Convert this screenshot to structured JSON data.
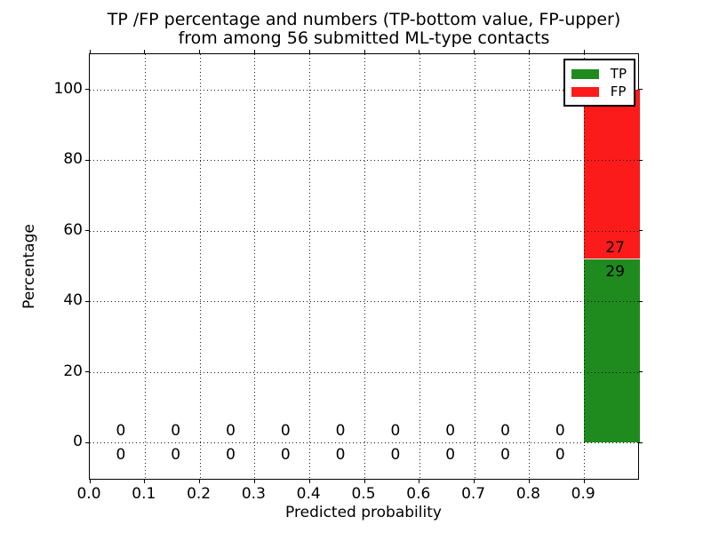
{
  "chart_data": {
    "type": "bar",
    "stacked": true,
    "title_line1": "TP /FP percentage and numbers (TP-bottom value, FP-upper)",
    "title_line2": "from among 56 submitted ML-type contacts",
    "xlabel": "Predicted probability",
    "ylabel": "Percentage",
    "total_submitted_contacts": 56,
    "xlim": [
      0.0,
      1.0
    ],
    "ylim": [
      -10.8,
      110
    ],
    "bar_width": 0.1,
    "grid": {
      "style": "dotted",
      "color": "#000000"
    },
    "x_ticks": [
      {
        "value": 0.0,
        "label": "0.0"
      },
      {
        "value": 0.1,
        "label": "0.1"
      },
      {
        "value": 0.2,
        "label": "0.2"
      },
      {
        "value": 0.3,
        "label": "0.3"
      },
      {
        "value": 0.4,
        "label": "0.4"
      },
      {
        "value": 0.5,
        "label": "0.5"
      },
      {
        "value": 0.6,
        "label": "0.6"
      },
      {
        "value": 0.7,
        "label": "0.7"
      },
      {
        "value": 0.8,
        "label": "0.8"
      },
      {
        "value": 0.9,
        "label": "0.9"
      }
    ],
    "y_ticks": [
      {
        "value": 0,
        "label": "0"
      },
      {
        "value": 20,
        "label": "20"
      },
      {
        "value": 40,
        "label": "40"
      },
      {
        "value": 60,
        "label": "60"
      },
      {
        "value": 80,
        "label": "80"
      },
      {
        "value": 100,
        "label": "100"
      }
    ],
    "categories": [
      0.05,
      0.15,
      0.25,
      0.35,
      0.45,
      0.55,
      0.65,
      0.75,
      0.85,
      0.95
    ],
    "series": [
      {
        "name": "TP",
        "color": "#1f8b1f",
        "counts": [
          0,
          0,
          0,
          0,
          0,
          0,
          0,
          0,
          0,
          29
        ],
        "percentages": [
          0,
          0,
          0,
          0,
          0,
          0,
          0,
          0,
          0,
          51.8
        ]
      },
      {
        "name": "FP",
        "color": "#fb1b1b",
        "counts": [
          0,
          0,
          0,
          0,
          0,
          0,
          0,
          0,
          0,
          27
        ],
        "percentages": [
          0,
          0,
          0,
          0,
          0,
          0,
          0,
          0,
          0,
          48.2
        ]
      }
    ],
    "annotation_note": "TP count shown below stack boundary, FP count shown above it",
    "legend": {
      "position": "upper right",
      "entries": [
        "TP",
        "FP"
      ]
    }
  }
}
